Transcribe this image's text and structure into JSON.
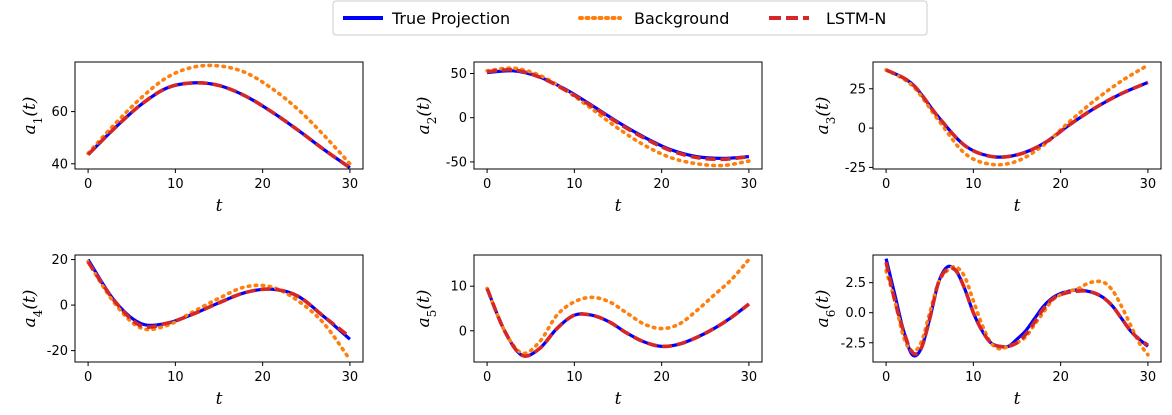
{
  "legend": {
    "entries": [
      {
        "label": "True Projection",
        "color": "#0000ff",
        "style": "solid"
      },
      {
        "label": "Background",
        "color": "#ff7f0e",
        "style": "dotted"
      },
      {
        "label": "LSTM-N",
        "color": "#d62728",
        "style": "dashed"
      }
    ],
    "placement": "top-center"
  },
  "chart_data": [
    {
      "type": "line",
      "xlabel": "t",
      "ylabel_base": "a",
      "ylabel_sub": "1",
      "xlim": [
        -1.5,
        31.5
      ],
      "ylim": [
        38,
        79
      ],
      "xticks": [
        0,
        10,
        20,
        30
      ],
      "yticks": [
        40,
        60
      ],
      "x": [
        0,
        3,
        6,
        9,
        12,
        15,
        18,
        21,
        24,
        27,
        30
      ],
      "series": [
        {
          "name": "True Projection",
          "values": [
            43.5,
            53.5,
            62.5,
            69,
            71,
            70,
            66,
            60,
            53,
            45.5,
            38.5
          ]
        },
        {
          "name": "Background",
          "values": [
            44,
            55,
            65,
            73,
            77,
            77.5,
            75,
            69,
            61,
            51,
            40
          ]
        },
        {
          "name": "LSTM-N",
          "values": [
            43.5,
            53.5,
            62.5,
            69,
            71,
            70,
            66,
            60,
            53,
            45.5,
            38.5
          ]
        }
      ]
    },
    {
      "type": "line",
      "xlabel": "t",
      "ylabel_base": "a",
      "ylabel_sub": "2",
      "xlim": [
        -1.5,
        31.5
      ],
      "ylim": [
        -58,
        63
      ],
      "xticks": [
        0,
        10,
        20,
        30
      ],
      "yticks": [
        50,
        0,
        -50
      ],
      "x": [
        0,
        3,
        6,
        9,
        12,
        15,
        18,
        21,
        24,
        27,
        30
      ],
      "series": [
        {
          "name": "True Projection",
          "values": [
            51,
            53,
            46,
            32,
            14,
            -5,
            -22,
            -36,
            -44,
            -46,
            -44
          ]
        },
        {
          "name": "Background",
          "values": [
            53,
            56,
            48,
            31,
            10,
            -12,
            -31,
            -45,
            -52,
            -54,
            -49
          ]
        },
        {
          "name": "LSTM-N",
          "values": [
            52,
            54,
            46,
            31,
            13,
            -6,
            -23,
            -37,
            -45,
            -47,
            -44
          ]
        }
      ]
    },
    {
      "type": "line",
      "xlabel": "t",
      "ylabel_base": "a",
      "ylabel_sub": "3",
      "xlim": [
        -1.5,
        31.5
      ],
      "ylim": [
        -26,
        42
      ],
      "xticks": [
        0,
        10,
        20,
        30
      ],
      "yticks": [
        25,
        0,
        -25
      ],
      "x": [
        0,
        3,
        6,
        9,
        12,
        15,
        18,
        21,
        24,
        27,
        30
      ],
      "series": [
        {
          "name": "True Projection",
          "values": [
            37,
            28,
            7,
            -11,
            -18,
            -17,
            -10,
            2,
            13,
            22,
            29
          ]
        },
        {
          "name": "Background",
          "values": [
            37,
            27,
            5,
            -16,
            -23,
            -21,
            -11,
            4,
            18,
            30,
            40
          ]
        },
        {
          "name": "LSTM-N",
          "values": [
            37,
            28,
            7,
            -11,
            -18,
            -17,
            -10,
            2,
            13,
            22,
            29
          ]
        }
      ]
    },
    {
      "type": "line",
      "xlabel": "t",
      "ylabel_base": "a",
      "ylabel_sub": "4",
      "xlim": [
        -1.5,
        31.5
      ],
      "ylim": [
        -25,
        22
      ],
      "xticks": [
        0,
        10,
        20,
        30
      ],
      "yticks": [
        20,
        0,
        -20
      ],
      "x": [
        0,
        3,
        6,
        9,
        12,
        15,
        18,
        21,
        24,
        27,
        30
      ],
      "series": [
        {
          "name": "True Projection",
          "values": [
            20,
            2,
            -8,
            -8,
            -4,
            1,
            5.5,
            7,
            4,
            -5,
            -15
          ]
        },
        {
          "name": "Background",
          "values": [
            19,
            1,
            -10,
            -9,
            -3,
            3,
            8,
            8,
            2,
            -8,
            -24
          ]
        },
        {
          "name": "LSTM-N",
          "values": [
            19,
            2,
            -9,
            -8,
            -4,
            1,
            5.5,
            7,
            4,
            -5,
            -14
          ]
        }
      ]
    },
    {
      "type": "line",
      "xlabel": "t",
      "ylabel_base": "a",
      "ylabel_sub": "5",
      "xlim": [
        -1.5,
        31.5
      ],
      "ylim": [
        -7,
        17
      ],
      "xticks": [
        0,
        10,
        20,
        30
      ],
      "yticks": [
        10,
        0
      ],
      "x": [
        0,
        2,
        4,
        6,
        8,
        10,
        12,
        14,
        16,
        18,
        20,
        22,
        24,
        26,
        28,
        30
      ],
      "series": [
        {
          "name": "True Projection",
          "values": [
            9.5,
            0,
            -5.5,
            -4,
            0.5,
            3.5,
            3.5,
            2,
            -0.5,
            -2.5,
            -3.5,
            -3,
            -1.5,
            0.5,
            3,
            6
          ]
        },
        {
          "name": "Background",
          "values": [
            9.5,
            0,
            -5,
            -2.5,
            3.5,
            6.5,
            7.5,
            6.5,
            4,
            1.5,
            0.5,
            1.5,
            4.5,
            8,
            11.5,
            16
          ]
        },
        {
          "name": "LSTM-N",
          "values": [
            9.5,
            0,
            -5.5,
            -4,
            0.5,
            3.5,
            3.5,
            2,
            -0.5,
            -2.5,
            -3.5,
            -3,
            -1.5,
            0.5,
            3,
            6
          ]
        }
      ]
    },
    {
      "type": "line",
      "xlabel": "t",
      "ylabel_base": "a",
      "ylabel_sub": "6",
      "xlim": [
        -1.5,
        31.5
      ],
      "ylim": [
        -4.1,
        4.8
      ],
      "xticks": [
        0,
        10,
        20,
        30
      ],
      "yticks": [
        2.5,
        0.0,
        -2.5
      ],
      "x": [
        0,
        1,
        2,
        3,
        4,
        5,
        6,
        7,
        8,
        9,
        10,
        11,
        12,
        13,
        14,
        15,
        16,
        17,
        18,
        19,
        20,
        21,
        22,
        23,
        24,
        25,
        26,
        27,
        28,
        29,
        30
      ],
      "series": [
        {
          "name": "True Projection",
          "values": [
            4.5,
            1.5,
            -1.5,
            -3.5,
            -3,
            -0.5,
            2.5,
            3.8,
            3.5,
            2,
            0,
            -1.5,
            -2.5,
            -2.8,
            -2.8,
            -2.2,
            -1.5,
            -0.5,
            0.5,
            1.2,
            1.6,
            1.8,
            1.9,
            1.8,
            1.6,
            1.2,
            0.5,
            -0.5,
            -1.5,
            -2.2,
            -2.8
          ]
        },
        {
          "name": "Background",
          "values": [
            3.5,
            1,
            -2,
            -3.2,
            -2.5,
            0,
            2.5,
            3.5,
            3.8,
            3,
            1,
            -1,
            -2.5,
            -3,
            -2.8,
            -2.5,
            -2,
            -1,
            0,
            1,
            1.5,
            1.8,
            2,
            2.4,
            2.6,
            2.5,
            1.8,
            0.5,
            -1,
            -2.5,
            -3.5
          ]
        },
        {
          "name": "LSTM-N",
          "values": [
            4.2,
            1,
            -1.5,
            -3.3,
            -3,
            -0.5,
            2.5,
            3.6,
            3.5,
            2,
            0,
            -1.5,
            -2.5,
            -2.8,
            -2.8,
            -2.5,
            -1.8,
            -0.8,
            0.3,
            1.1,
            1.5,
            1.7,
            1.8,
            1.8,
            1.6,
            1.2,
            0.5,
            -0.5,
            -1.5,
            -2.2,
            -2.7
          ]
        }
      ]
    }
  ]
}
